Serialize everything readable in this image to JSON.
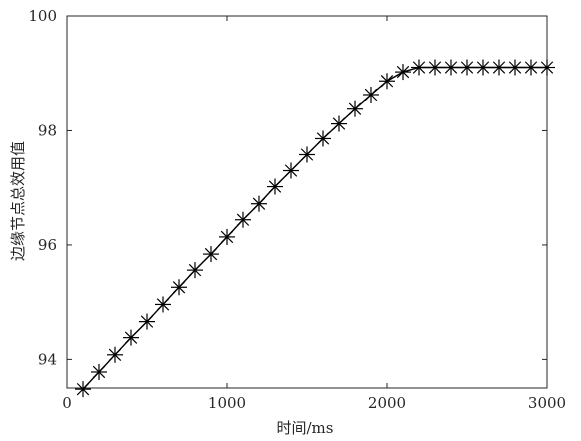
{
  "chart_data": {
    "type": "line",
    "title": "",
    "xlabel": "时间/ms",
    "ylabel": "边缘节点总效用值",
    "xlim": [
      0,
      3000
    ],
    "ylim": [
      93.5,
      100
    ],
    "xticks": [
      0,
      1000,
      2000,
      3000
    ],
    "yticks": [
      94,
      96,
      98,
      100
    ],
    "xtick_labels": [
      "0",
      "1000",
      "2000",
      "3000"
    ],
    "ytick_labels": [
      "94",
      "96",
      "98",
      "100"
    ],
    "grid": false,
    "legend": "none",
    "series": [
      {
        "marker": "asterisk",
        "line_color": "#000000",
        "x": [
          100,
          200,
          300,
          400,
          500,
          600,
          700,
          800,
          900,
          1000,
          1100,
          1200,
          1300,
          1400,
          1500,
          1600,
          1700,
          1800,
          1900,
          2000,
          2100,
          2200,
          2300,
          2400,
          2500,
          2600,
          2700,
          2800,
          2900,
          3000
        ],
        "values": [
          93.48,
          93.78,
          94.08,
          94.38,
          94.66,
          94.96,
          95.26,
          95.56,
          95.84,
          96.14,
          96.44,
          96.72,
          97.02,
          97.3,
          97.58,
          97.86,
          98.12,
          98.38,
          98.62,
          98.86,
          99.02,
          99.1,
          99.1,
          99.1,
          99.1,
          99.1,
          99.1,
          99.1,
          99.1,
          99.1
        ]
      }
    ]
  }
}
